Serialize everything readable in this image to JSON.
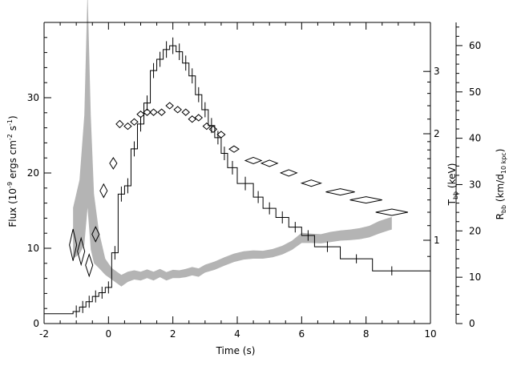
{
  "chart_data": {
    "type": "line",
    "xlabel": "Time (s)",
    "ylabel_left": {
      "main": "Flux (10",
      "sup1": "-9",
      "mid": " ergs cm",
      "sup2": "-2",
      "mid2": " s",
      "sup3": "-1",
      "end": ")"
    },
    "ylabel_t": {
      "main": "T",
      "sub": "bb",
      "end": " (keV)"
    },
    "ylabel_r": {
      "main": "R",
      "sub": "bb",
      "mid": " (km/d",
      "sub2": "10 kpc",
      "end": ")"
    },
    "xlim": [
      -2,
      10
    ],
    "ylim_left": [
      0,
      40
    ],
    "ylim_r": [
      0,
      65
    ],
    "t_scale": "log",
    "x_ticks": [
      "-2",
      "0",
      "2",
      "4",
      "6",
      "8",
      "10"
    ],
    "y_left_ticks": [
      "0",
      "10",
      "20",
      "30"
    ],
    "t_ticks": [
      "1",
      "2",
      "3"
    ],
    "r_ticks": [
      "0",
      "10",
      "20",
      "30",
      "40",
      "50",
      "60"
    ],
    "flux_series": {
      "name": "Flux",
      "steps": [
        [
          -2.0,
          -1.1,
          1.3
        ],
        [
          -1.1,
          -0.9,
          1.6
        ],
        [
          -0.9,
          -0.7,
          2.2
        ],
        [
          -0.7,
          -0.5,
          2.9
        ],
        [
          -0.5,
          -0.3,
          3.6
        ],
        [
          -0.3,
          -0.1,
          4.1
        ],
        [
          -0.1,
          0.1,
          4.8
        ],
        [
          0.1,
          0.3,
          9.4
        ],
        [
          0.3,
          0.5,
          17.2
        ],
        [
          0.5,
          0.7,
          18.3
        ],
        [
          0.7,
          0.9,
          23.2
        ],
        [
          0.9,
          1.1,
          26.5
        ],
        [
          1.1,
          1.3,
          29.3
        ],
        [
          1.3,
          1.5,
          33.6
        ],
        [
          1.5,
          1.7,
          35.1
        ],
        [
          1.7,
          1.9,
          36.4
        ],
        [
          1.9,
          2.1,
          36.9
        ],
        [
          2.1,
          2.3,
          36.1
        ],
        [
          2.3,
          2.5,
          34.6
        ],
        [
          2.5,
          2.7,
          32.9
        ],
        [
          2.7,
          2.9,
          30.4
        ],
        [
          2.9,
          3.1,
          28.4
        ],
        [
          3.1,
          3.3,
          26.3
        ],
        [
          3.3,
          3.5,
          24.7
        ],
        [
          3.5,
          3.7,
          22.6
        ],
        [
          3.7,
          4.0,
          20.7
        ],
        [
          4.0,
          4.5,
          18.6
        ],
        [
          4.5,
          4.8,
          16.8
        ],
        [
          4.8,
          5.2,
          15.3
        ],
        [
          5.2,
          5.6,
          14.1
        ],
        [
          5.6,
          6.0,
          12.8
        ],
        [
          6.0,
          6.4,
          11.7
        ],
        [
          6.4,
          7.2,
          10.2
        ],
        [
          7.2,
          8.2,
          8.6
        ],
        [
          8.2,
          10.0,
          7.0
        ]
      ],
      "err_x": [
        -1.0,
        -0.8,
        -0.6,
        -0.4,
        -0.2,
        0.0,
        0.2,
        0.4,
        0.6,
        0.8,
        1.0,
        1.2,
        1.4,
        1.6,
        1.8,
        2.0,
        2.2,
        2.4,
        2.6,
        2.8,
        3.0,
        3.2,
        3.4,
        3.6,
        3.85,
        4.25,
        4.65,
        5.0,
        5.4,
        5.8,
        6.2,
        6.8,
        7.7,
        8.8
      ],
      "err_half": [
        0.8,
        0.8,
        0.8,
        0.8,
        0.8,
        0.8,
        0.9,
        1.0,
        1.0,
        1.0,
        1.0,
        1.0,
        1.0,
        1.0,
        1.1,
        1.1,
        1.1,
        1.0,
        1.0,
        1.0,
        1.0,
        1.0,
        0.9,
        0.9,
        0.9,
        0.9,
        0.8,
        0.8,
        0.8,
        0.7,
        0.7,
        0.7,
        0.6,
        0.6
      ]
    },
    "temperature_series": {
      "name": "T_bb",
      "points": [
        {
          "x": -1.1,
          "t": 0.97,
          "dx": 0.1,
          "dt_lo": 0.1,
          "dt_hi": 0.1
        },
        {
          "x": -0.85,
          "t": 0.93,
          "dx": 0.1,
          "dt_lo": 0.08,
          "dt_hi": 0.08
        },
        {
          "x": -0.6,
          "t": 0.85,
          "dx": 0.1,
          "dt_lo": 0.06,
          "dt_hi": 0.06
        },
        {
          "x": -0.4,
          "t": 1.04,
          "dx": 0.1,
          "dt_lo": 0.05,
          "dt_hi": 0.05
        },
        {
          "x": -0.15,
          "t": 1.38,
          "dx": 0.1,
          "dt_lo": 0.06,
          "dt_hi": 0.06
        },
        {
          "x": 0.15,
          "t": 1.65,
          "dx": 0.1,
          "dt_lo": 0.06,
          "dt_hi": 0.06
        },
        {
          "x": 0.35,
          "t": 2.13,
          "dx": 0.1,
          "dt_lo": 0.05,
          "dt_hi": 0.05
        },
        {
          "x": 0.6,
          "t": 2.1,
          "dx": 0.1,
          "dt_lo": 0.04,
          "dt_hi": 0.04
        },
        {
          "x": 0.8,
          "t": 2.16,
          "dx": 0.1,
          "dt_lo": 0.04,
          "dt_hi": 0.04
        },
        {
          "x": 1.0,
          "t": 2.27,
          "dx": 0.1,
          "dt_lo": 0.035,
          "dt_hi": 0.035
        },
        {
          "x": 1.2,
          "t": 2.3,
          "dx": 0.1,
          "dt_lo": 0.035,
          "dt_hi": 0.035
        },
        {
          "x": 1.4,
          "t": 2.3,
          "dx": 0.1,
          "dt_lo": 0.035,
          "dt_hi": 0.035
        },
        {
          "x": 1.65,
          "t": 2.3,
          "dx": 0.1,
          "dt_lo": 0.035,
          "dt_hi": 0.035
        },
        {
          "x": 1.9,
          "t": 2.4,
          "dx": 0.1,
          "dt_lo": 0.035,
          "dt_hi": 0.035
        },
        {
          "x": 2.15,
          "t": 2.34,
          "dx": 0.1,
          "dt_lo": 0.035,
          "dt_hi": 0.035
        },
        {
          "x": 2.4,
          "t": 2.3,
          "dx": 0.1,
          "dt_lo": 0.035,
          "dt_hi": 0.035
        },
        {
          "x": 2.6,
          "t": 2.2,
          "dx": 0.1,
          "dt_lo": 0.035,
          "dt_hi": 0.035
        },
        {
          "x": 2.8,
          "t": 2.22,
          "dx": 0.1,
          "dt_lo": 0.035,
          "dt_hi": 0.035
        },
        {
          "x": 3.05,
          "t": 2.1,
          "dx": 0.1,
          "dt_lo": 0.035,
          "dt_hi": 0.035
        },
        {
          "x": 3.25,
          "t": 2.06,
          "dx": 0.1,
          "dt_lo": 0.035,
          "dt_hi": 0.035
        },
        {
          "x": 3.5,
          "t": 1.99,
          "dx": 0.12,
          "dt_lo": 0.035,
          "dt_hi": 0.035
        },
        {
          "x": 3.9,
          "t": 1.81,
          "dx": 0.15,
          "dt_lo": 0.035,
          "dt_hi": 0.035
        },
        {
          "x": 4.5,
          "t": 1.68,
          "dx": 0.25,
          "dt_lo": 0.03,
          "dt_hi": 0.03
        },
        {
          "x": 5.0,
          "t": 1.65,
          "dx": 0.25,
          "dt_lo": 0.03,
          "dt_hi": 0.03
        },
        {
          "x": 5.6,
          "t": 1.55,
          "dx": 0.25,
          "dt_lo": 0.028,
          "dt_hi": 0.028
        },
        {
          "x": 6.3,
          "t": 1.45,
          "dx": 0.3,
          "dt_lo": 0.027,
          "dt_hi": 0.027
        },
        {
          "x": 7.2,
          "t": 1.37,
          "dx": 0.45,
          "dt_lo": 0.026,
          "dt_hi": 0.026
        },
        {
          "x": 8.0,
          "t": 1.3,
          "dx": 0.5,
          "dt_lo": 0.026,
          "dt_hi": 0.026
        },
        {
          "x": 8.8,
          "t": 1.2,
          "dx": 0.5,
          "dt_lo": 0.025,
          "dt_hi": 0.025
        }
      ]
    },
    "radius_series": {
      "name": "R_bb",
      "band": [
        [
          -1.1,
          14,
          25
        ],
        [
          -0.9,
          15,
          31
        ],
        [
          -0.75,
          17,
          45
        ],
        [
          -0.65,
          25,
          72
        ],
        [
          -0.55,
          16,
          45
        ],
        [
          -0.45,
          13,
          28
        ],
        [
          -0.3,
          12,
          20
        ],
        [
          -0.1,
          10.5,
          14
        ],
        [
          0.1,
          9.5,
          12
        ],
        [
          0.4,
          8,
          10.5
        ],
        [
          0.6,
          9,
          11.2
        ],
        [
          0.8,
          9.5,
          11.5
        ],
        [
          1.0,
          9.3,
          11.2
        ],
        [
          1.2,
          9.8,
          11.7
        ],
        [
          1.4,
          9.3,
          11.2
        ],
        [
          1.6,
          10.0,
          11.8
        ],
        [
          1.8,
          9.3,
          11.1
        ],
        [
          2.0,
          9.8,
          11.6
        ],
        [
          2.2,
          9.8,
          11.5
        ],
        [
          2.4,
          10.0,
          11.8
        ],
        [
          2.6,
          10.4,
          12.2
        ],
        [
          2.8,
          10.1,
          11.9
        ],
        [
          3.0,
          11.0,
          12.7
        ],
        [
          3.3,
          11.6,
          13.4
        ],
        [
          3.6,
          12.5,
          14.3
        ],
        [
          3.9,
          13.3,
          15.1
        ],
        [
          4.2,
          13.8,
          15.6
        ],
        [
          4.5,
          14.0,
          15.8
        ],
        [
          4.8,
          14.0,
          15.7
        ],
        [
          5.1,
          14.3,
          16.1
        ],
        [
          5.4,
          14.9,
          16.8
        ],
        [
          5.7,
          15.9,
          17.9
        ],
        [
          6.0,
          17.4,
          19.6
        ],
        [
          6.3,
          17.4,
          19.4
        ],
        [
          6.6,
          17.3,
          19.3
        ],
        [
          6.9,
          17.6,
          19.8
        ],
        [
          7.2,
          17.9,
          20.1
        ],
        [
          7.5,
          18.0,
          20.3
        ],
        [
          7.8,
          18.2,
          20.6
        ],
        [
          8.1,
          18.6,
          21.1
        ],
        [
          8.4,
          19.4,
          22.1
        ],
        [
          8.7,
          20.1,
          22.8
        ],
        [
          8.8,
          20.3,
          23.0
        ]
      ]
    },
    "colors": {
      "flux": "#000000",
      "temperature": "#000000",
      "radius_band": "#b4b4b4"
    }
  }
}
